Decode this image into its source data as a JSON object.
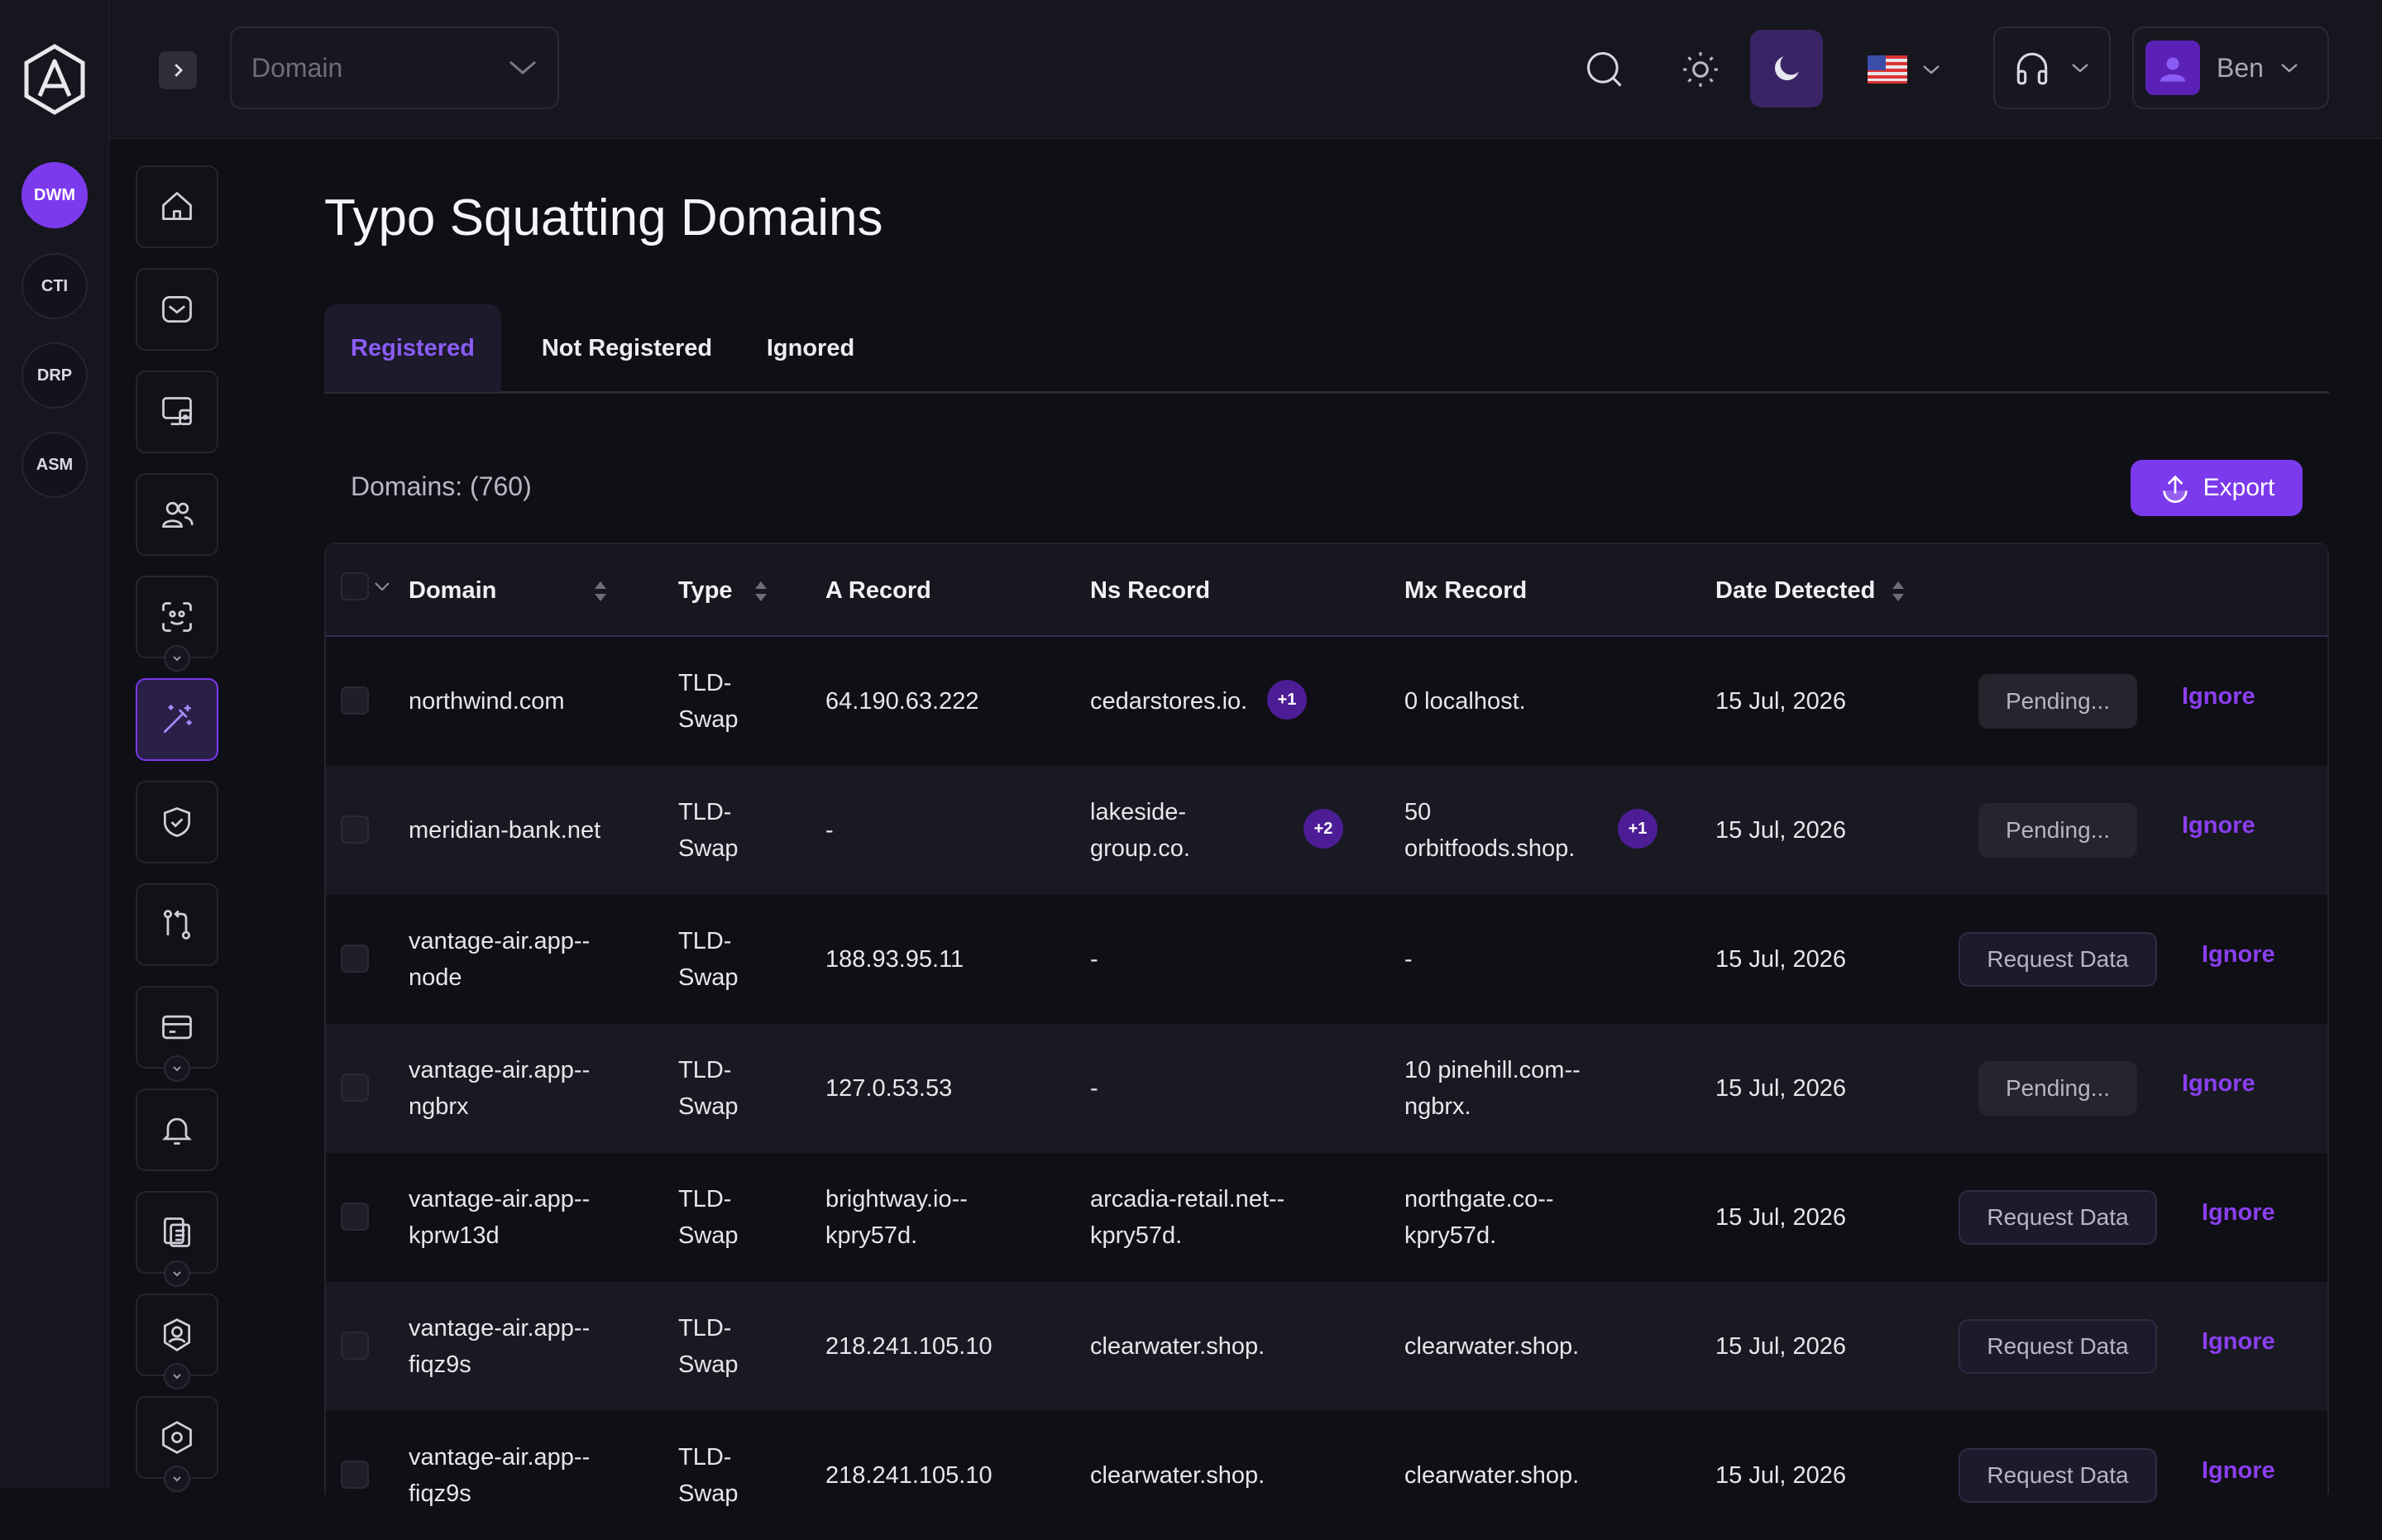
{
  "rail": {
    "products": [
      {
        "label": "DWM",
        "active": true
      },
      {
        "label": "CTI",
        "active": false
      },
      {
        "label": "DRP",
        "active": false
      },
      {
        "label": "ASM",
        "active": false
      }
    ]
  },
  "nav": {
    "items": [
      {
        "icon": "home-icon"
      },
      {
        "icon": "mail-icon"
      },
      {
        "icon": "monitor-lock-icon"
      },
      {
        "icon": "users-icon"
      },
      {
        "icon": "face-scan-icon",
        "expandable": true
      },
      {
        "icon": "magic-wand-icon",
        "active": true
      },
      {
        "icon": "shield-check-icon"
      },
      {
        "icon": "git-compare-icon"
      },
      {
        "icon": "credit-card-icon",
        "expandable": true
      },
      {
        "icon": "bell-icon"
      },
      {
        "icon": "devices-icon",
        "expandable": true
      },
      {
        "icon": "user-shield-icon",
        "expandable": true
      },
      {
        "icon": "hexagon-settings-icon",
        "expandable": true
      }
    ]
  },
  "header": {
    "domain_select": {
      "placeholder": "Domain"
    },
    "user": {
      "name": "Ben"
    }
  },
  "page": {
    "title": "Typo Squatting Domains",
    "tabs": [
      {
        "label": "Registered",
        "active": true
      },
      {
        "label": "Not Registered",
        "active": false
      },
      {
        "label": "Ignored",
        "active": false
      }
    ],
    "count_label": "Domains: (760)",
    "export_label": "Export"
  },
  "table": {
    "columns": [
      "Domain",
      "Type",
      "A Record",
      "Ns Record",
      "Mx Record",
      "Date Detected"
    ],
    "rows": [
      {
        "domain": [
          "northwind.com"
        ],
        "type": [
          "TLD-",
          "Swap"
        ],
        "a": [
          "64.190.63.222"
        ],
        "ns": [
          "cedarstores.io."
        ],
        "ns_more": "+1",
        "mx": [
          "0 localhost."
        ],
        "mx_more": "",
        "date": "15 Jul, 2026",
        "status": "Pending...",
        "action": "Ignore"
      },
      {
        "domain": [
          "meridian-bank.net"
        ],
        "type": [
          "TLD-",
          "Swap"
        ],
        "a": [
          "-"
        ],
        "ns": [
          "lakeside-",
          "group.co."
        ],
        "ns_more": "+2",
        "mx": [
          "50",
          "orbitfoods.shop."
        ],
        "mx_more": "+1",
        "date": "15 Jul, 2026",
        "status": "Pending...",
        "action": "Ignore"
      },
      {
        "domain": [
          "vantage-air.app--",
          "node"
        ],
        "type": [
          "TLD-",
          "Swap"
        ],
        "a": [
          "188.93.95.11"
        ],
        "ns": [
          "-"
        ],
        "ns_more": "",
        "mx": [
          "-"
        ],
        "mx_more": "",
        "date": "15 Jul, 2026",
        "status": "Request Data",
        "action": "Ignore"
      },
      {
        "domain": [
          "vantage-air.app--",
          "ngbrx"
        ],
        "type": [
          "TLD-",
          "Swap"
        ],
        "a": [
          "127.0.53.53"
        ],
        "ns": [
          "-"
        ],
        "ns_more": "",
        "mx": [
          "10 pinehill.com--",
          "ngbrx."
        ],
        "mx_more": "",
        "date": "15 Jul, 2026",
        "status": "Pending...",
        "action": "Ignore"
      },
      {
        "domain": [
          "vantage-air.app--",
          "kprw13d"
        ],
        "type": [
          "TLD-",
          "Swap"
        ],
        "a": [
          "brightway.io--",
          "kpry57d."
        ],
        "ns": [
          "arcadia-retail.net--",
          "kpry57d."
        ],
        "ns_more": "",
        "mx": [
          "northgate.co--",
          "kpry57d."
        ],
        "mx_more": "",
        "date": "15 Jul, 2026",
        "status": "Request Data",
        "action": "Ignore"
      },
      {
        "domain": [
          "vantage-air.app--",
          "fiqz9s"
        ],
        "type": [
          "TLD-",
          "Swap"
        ],
        "a": [
          "218.241.105.10"
        ],
        "ns": [
          "clearwater.shop."
        ],
        "ns_more": "",
        "mx": [
          "clearwater.shop."
        ],
        "mx_more": "",
        "date": "15 Jul, 2026",
        "status": "Request Data",
        "action": "Ignore"
      },
      {
        "domain": [
          "vantage-air.app--",
          "fiqz9s"
        ],
        "type": [
          "TLD-",
          "Swap"
        ],
        "a": [
          "218.241.105.10"
        ],
        "ns": [
          "clearwater.shop."
        ],
        "ns_more": "",
        "mx": [
          "clearwater.shop."
        ],
        "mx_more": "",
        "date": "15 Jul, 2026",
        "status": "Request Data",
        "action": "Ignore"
      }
    ]
  },
  "colors": {
    "accent": "#7c3aed",
    "link": "#8b3ff0",
    "background": "#0f0f16"
  }
}
